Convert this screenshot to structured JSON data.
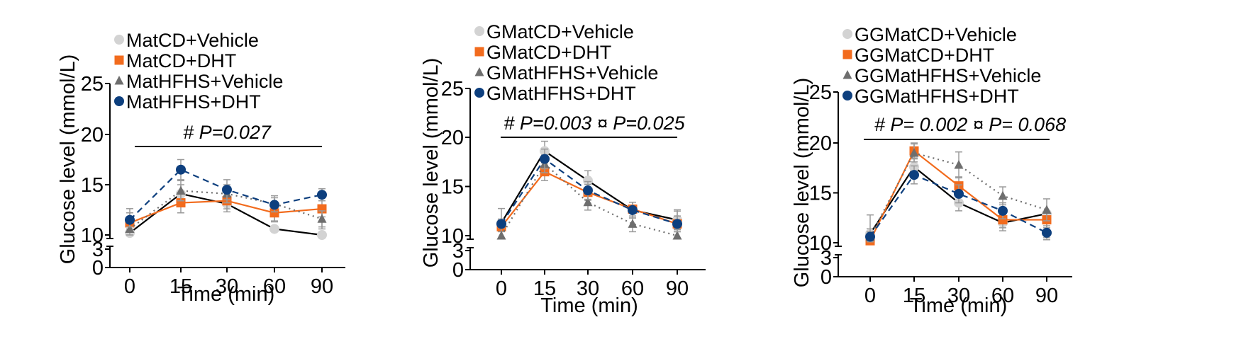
{
  "colors": {
    "matcd_vehicle": "#d3d3d3",
    "matcd_dht": "#f26b1d",
    "mathfhs_vehicle": "#6e6e6e",
    "mathfhs_dht": "#0d3f7e",
    "line_vehicle": "#000000"
  },
  "chart_data": [
    {
      "type": "line",
      "x": [
        "0",
        "15",
        "30",
        "60",
        "90"
      ],
      "xlabel": "Time (min)",
      "ylabel": "Glucose level (mmol/L)",
      "yticks": [
        "0",
        "3",
        "10",
        "15",
        "20",
        "25"
      ],
      "ylim_upper": [
        10,
        25
      ],
      "ylim_lower": [
        0,
        3
      ],
      "annotation": "# P=0.027",
      "legend_position": "top-left",
      "series": [
        {
          "name": "MatCD+Vehicle",
          "marker": "circle",
          "line": "solid",
          "values": [
            10.2,
            14.1,
            13.1,
            10.6,
            10.0
          ],
          "errors": [
            0.6,
            0.9,
            0.8,
            0.7,
            0.6
          ]
        },
        {
          "name": "MatCD+DHT",
          "marker": "square",
          "line": "solid",
          "values": [
            11.2,
            13.2,
            13.4,
            12.2,
            12.6
          ],
          "errors": [
            0.6,
            1.0,
            0.8,
            0.8,
            0.8
          ]
        },
        {
          "name": "MatHFHS+Vehicle",
          "marker": "triangle",
          "line": "dotted",
          "values": [
            10.6,
            14.4,
            14.1,
            13.1,
            11.6
          ],
          "errors": [
            0.6,
            1.0,
            0.9,
            0.8,
            0.8
          ]
        },
        {
          "name": "MatHFHS+DHT",
          "marker": "circle",
          "line": "dashed",
          "values": [
            11.5,
            16.5,
            14.5,
            13.0,
            14.0
          ],
          "errors": [
            0.7,
            1.0,
            1.0,
            0.7,
            0.6
          ]
        }
      ]
    },
    {
      "type": "line",
      "x": [
        "0",
        "15",
        "30",
        "60",
        "90"
      ],
      "xlabel": "Time (min)",
      "ylabel": "Glucose level (mmol/L)",
      "yticks": [
        "0",
        "3",
        "10",
        "15",
        "20",
        "25"
      ],
      "ylim_upper": [
        10,
        25
      ],
      "ylim_lower": [
        0,
        3
      ],
      "annotation": "# P=0.003 ¤ P=0.025",
      "legend_position": "top-left",
      "series": [
        {
          "name": "GMatCD+Vehicle",
          "marker": "circle",
          "line": "solid",
          "values": [
            11.3,
            18.6,
            15.6,
            12.6,
            11.6
          ],
          "errors": [
            0.4,
            1.0,
            1.0,
            0.8,
            0.9
          ]
        },
        {
          "name": "GMatCD+DHT",
          "marker": "square",
          "line": "solid",
          "values": [
            10.9,
            16.5,
            14.4,
            12.7,
            11.2
          ],
          "errors": [
            0.4,
            0.9,
            0.8,
            0.7,
            0.8
          ]
        },
        {
          "name": "GMatHFHS+Vehicle",
          "marker": "triangle",
          "line": "dotted",
          "values": [
            10.0,
            17.3,
            13.4,
            11.2,
            10.0
          ],
          "errors": [
            0.4,
            0.9,
            0.8,
            0.8,
            0.6
          ]
        },
        {
          "name": "GMatHFHS+DHT",
          "marker": "circle",
          "line": "dashed",
          "values": [
            11.2,
            17.8,
            14.6,
            12.6,
            11.2
          ],
          "errors": [
            0.4,
            1.0,
            0.9,
            0.8,
            0.8
          ]
        }
      ]
    },
    {
      "type": "line",
      "x": [
        "0",
        "15",
        "30",
        "60",
        "90"
      ],
      "xlabel": "Time (min)",
      "ylabel": "Glucose level (mmol/L)",
      "yticks": [
        "0",
        "3",
        "10",
        "15",
        "20",
        "25"
      ],
      "ylim_upper": [
        10,
        25
      ],
      "ylim_lower": [
        0,
        3
      ],
      "annotation": "# P= 0.002  ¤ P= 0.068",
      "legend_position": "top-left",
      "series": [
        {
          "name": "GGMatCD+Vehicle",
          "marker": "circle",
          "line": "solid",
          "values": [
            10.9,
            17.6,
            14.0,
            12.0,
            9.9
          ],
          "errors": [
            0.5,
            0.9,
            0.8,
            0.8,
            0.6
          ]
        },
        {
          "name": "GGMatCD+DHT",
          "marker": "square",
          "line": "solid",
          "values": [
            10.2,
            19.2,
            15.7,
            12.3,
            12.3
          ],
          "errors": [
            0.5,
            0.8,
            0.9,
            0.8,
            0.8
          ]
        },
        {
          "name": "GGMatHFHS+Vehicle",
          "marker": "triangle",
          "line": "dotted",
          "values": [
            10.6,
            19.0,
            17.8,
            14.7,
            13.3
          ],
          "errors": [
            0.5,
            0.9,
            1.3,
            0.9,
            1.1
          ]
        },
        {
          "name": "GGMatHFHS+DHT",
          "marker": "circle",
          "line": "dashed",
          "values": [
            10.6,
            16.8,
            14.9,
            13.2,
            11.0
          ],
          "errors": [
            0.5,
            0.9,
            0.9,
            0.8,
            0.7
          ]
        }
      ]
    }
  ]
}
